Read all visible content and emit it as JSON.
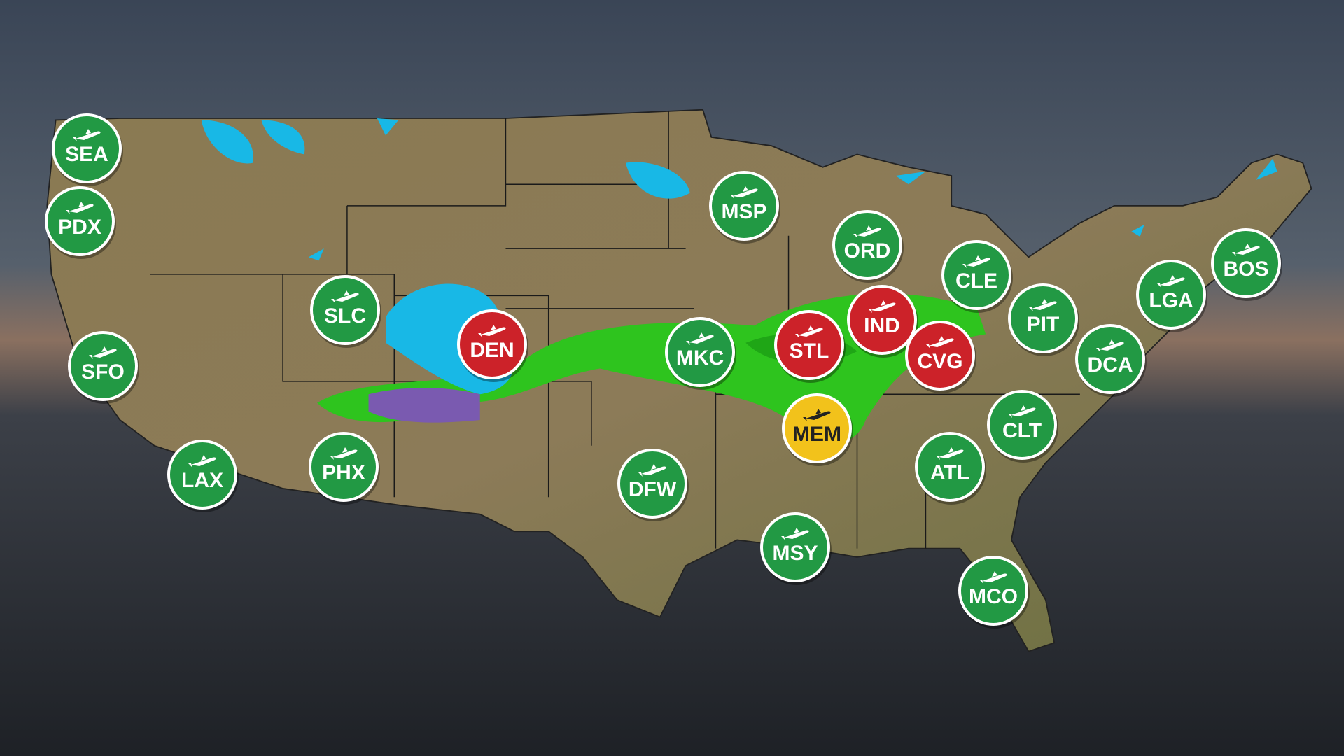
{
  "markers": [
    {
      "code": "SEA",
      "color": "#229944"
    },
    {
      "code": "PDX",
      "color": "#229944"
    },
    {
      "code": "SFO",
      "color": "#229944"
    },
    {
      "code": "LAX",
      "color": "#229944"
    },
    {
      "code": "PHX",
      "color": "#229944"
    },
    {
      "code": "SLC",
      "color": "#229944"
    },
    {
      "code": "DEN",
      "color": "#cc2229"
    },
    {
      "code": "MKC",
      "color": "#229944"
    },
    {
      "code": "DFW",
      "color": "#229944"
    },
    {
      "code": "MSP",
      "color": "#229944"
    },
    {
      "code": "ORD",
      "color": "#229944"
    },
    {
      "code": "STL",
      "color": "#cc2229"
    },
    {
      "code": "IND",
      "color": "#cc2229"
    },
    {
      "code": "CVG",
      "color": "#cc2229"
    },
    {
      "code": "MEM",
      "color": "#f2c21b"
    },
    {
      "code": "MSY",
      "color": "#229944"
    },
    {
      "code": "CLE",
      "color": "#229944"
    },
    {
      "code": "PIT",
      "color": "#229944"
    },
    {
      "code": "CLT",
      "color": "#229944"
    },
    {
      "code": "ATL",
      "color": "#229944"
    },
    {
      "code": "MCO",
      "color": "#229944"
    },
    {
      "code": "DCA",
      "color": "#229944"
    },
    {
      "code": "LGA",
      "color": "#229944"
    },
    {
      "code": "BOS",
      "color": "#229944"
    }
  ]
}
